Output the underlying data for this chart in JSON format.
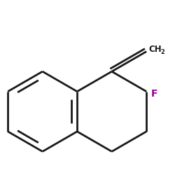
{
  "background_color": "#ffffff",
  "bond_color": "#1a1a1a",
  "F_color": "#990099",
  "CH2_color": "#1a1a1a",
  "line_width": 2.0,
  "fig_size": [
    2.5,
    2.5
  ],
  "dpi": 100
}
